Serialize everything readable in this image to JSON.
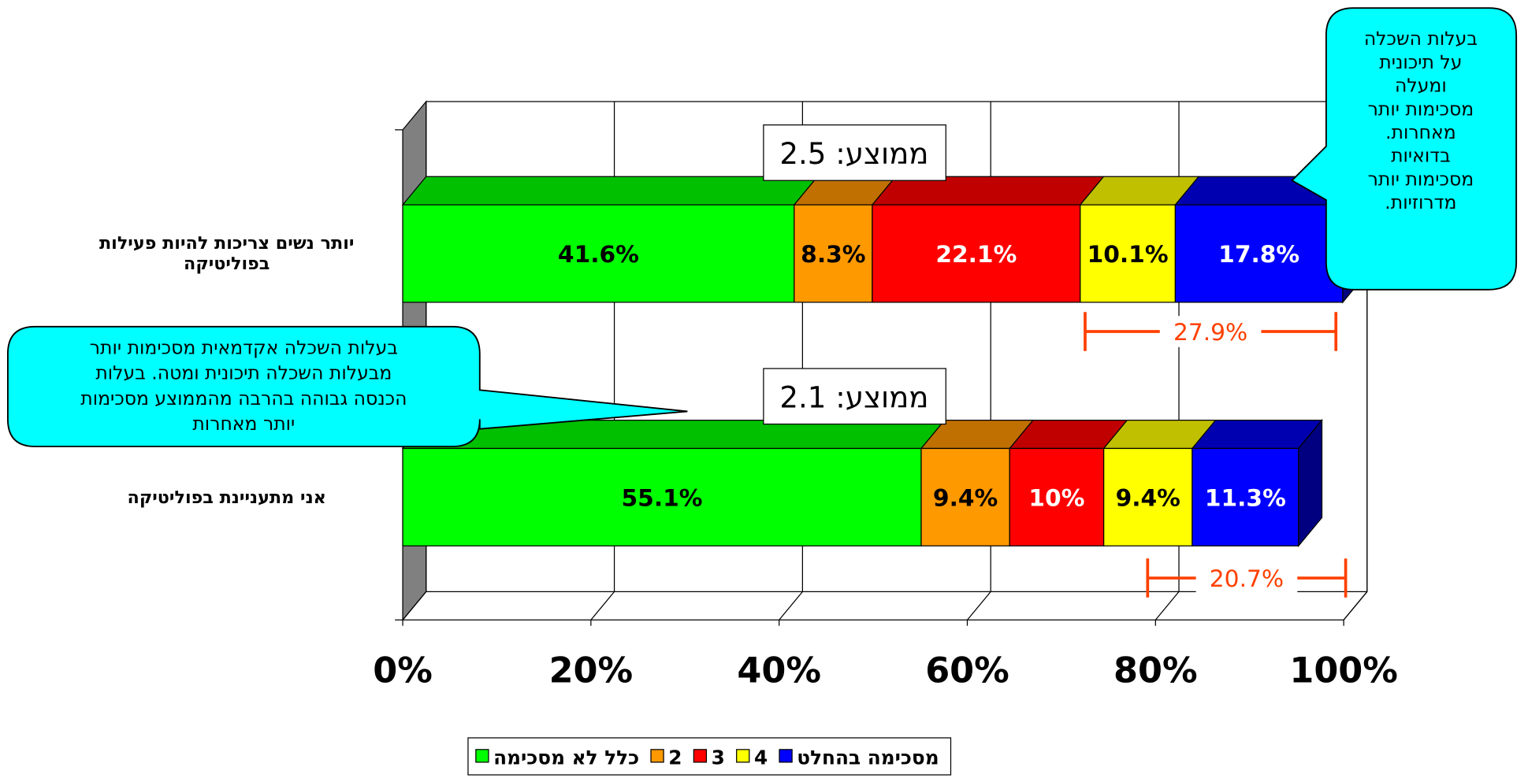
{
  "chart_data": {
    "type": "bar",
    "orientation": "horizontal",
    "stacked": true,
    "categories": [
      "יותר נשים צריכות להיות פעילות בפוליטיקה",
      "אני מתעניינת בפוליטיקה"
    ],
    "series": [
      {
        "name": "כלל לא מסכימה",
        "color": "#00ff00",
        "top_color": "#00c000",
        "label_color": "#000000",
        "values": [
          41.6,
          55.1
        ],
        "value_labels": [
          "41.6%",
          "55.1%"
        ]
      },
      {
        "name": "2",
        "color": "#ff9900",
        "top_color": "#c07000",
        "label_color": "#000000",
        "values": [
          8.3,
          9.4
        ],
        "value_labels": [
          "8.3%",
          "9.4%"
        ]
      },
      {
        "name": "3",
        "color": "#ff0000",
        "top_color": "#c00000",
        "label_color": "#ffffff",
        "values": [
          22.1,
          10
        ],
        "value_labels": [
          "22.1%",
          "10%"
        ]
      },
      {
        "name": "4",
        "color": "#ffff00",
        "top_color": "#c0c000",
        "label_color": "#000000",
        "values": [
          10.1,
          9.4
        ],
        "value_labels": [
          "10.1%",
          "9.4%"
        ]
      },
      {
        "name": "מסכימה בהחלט",
        "color": "#0000ff",
        "top_color": "#0000b0",
        "label_color": "#ffffff",
        "values": [
          17.8,
          11.3
        ],
        "value_labels": [
          "17.8%",
          "11.3%"
        ]
      }
    ],
    "xlim": [
      0,
      100
    ],
    "xticks": [
      {
        "value": 0,
        "label": "0%"
      },
      {
        "value": 20,
        "label": "20%"
      },
      {
        "value": 40,
        "label": "40%"
      },
      {
        "value": 60,
        "label": "60%"
      },
      {
        "value": 80,
        "label": "80%"
      },
      {
        "value": 100,
        "label": "100%"
      }
    ],
    "grid": true,
    "legend": "bottom",
    "annotations": {
      "averages": [
        "ממוצע: 2.5",
        "ממוצע: 2.1"
      ],
      "differences": [
        "27.9%",
        "20.7%"
      ],
      "difference_color": "#ff4000",
      "callout_color": "#00ffff",
      "callouts": [
        {
          "lines": [
            "בעלות השכלה",
            "על תיכונית",
            "ומעלה",
            "מסכימות יותר",
            "מאחרות.",
            "בדואיות",
            "מסכימות יותר",
            "מדרוזיות."
          ]
        },
        {
          "lines": [
            "בעלות השכלה אקדמאית מסכימות יותר",
            "מבעלות השכלה תיכונית ומטה. בעלות",
            "הכנסה גבוהה בהרבה מהממוצע מסכימות",
            "יותר מאחרות"
          ]
        }
      ]
    }
  }
}
